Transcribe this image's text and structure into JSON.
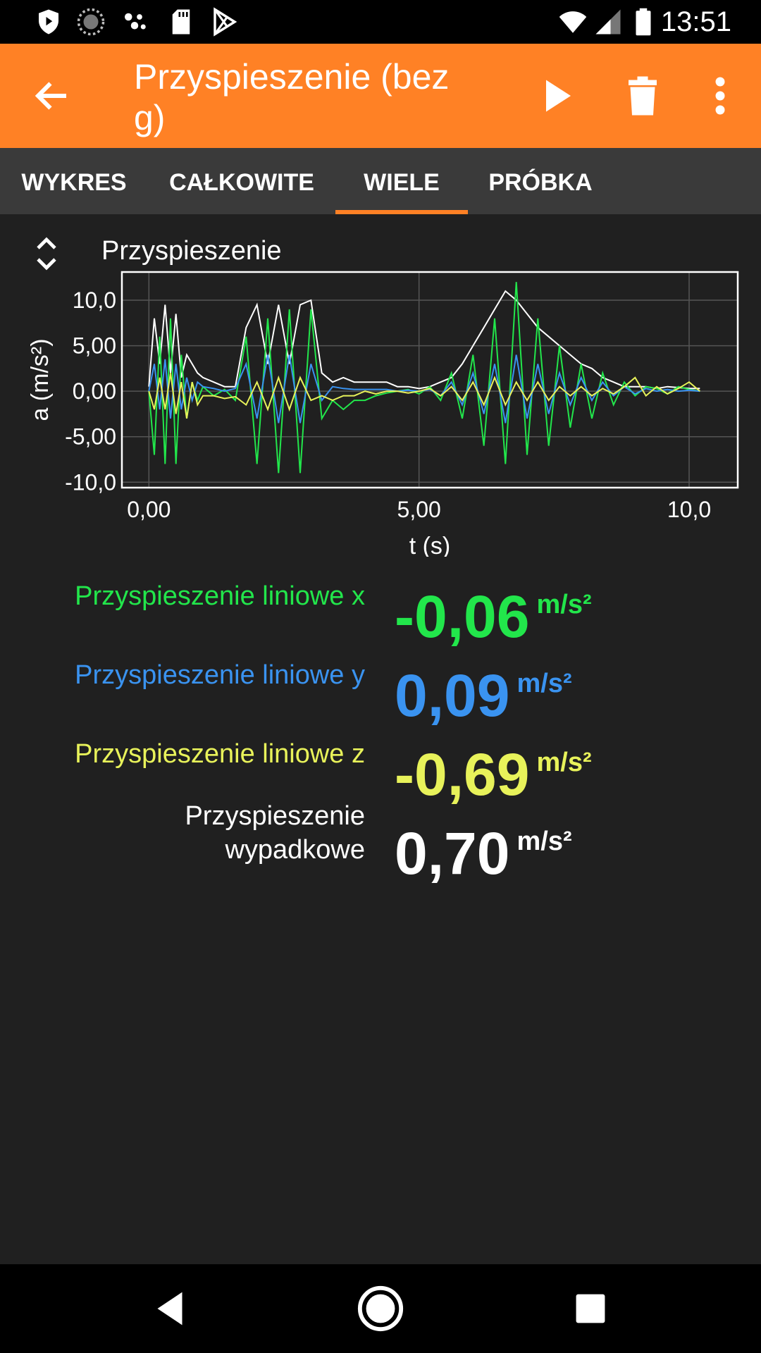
{
  "status_bar": {
    "time": "13:51",
    "left_icons": [
      "shield-icon",
      "sync-circle-icon",
      "dots-icon",
      "sd-card-icon",
      "play-store-icon"
    ],
    "right_icons": [
      "wifi-icon",
      "signal-icon",
      "battery-icon"
    ]
  },
  "app_bar": {
    "title": "Przyspieszenie (bez g)",
    "icons": [
      "back-arrow-icon",
      "play-icon",
      "trash-icon",
      "more-vert-icon"
    ],
    "accent_color": "#FF8125"
  },
  "tabs": [
    {
      "label": "WYKRES",
      "active": false
    },
    {
      "label": "CAŁKOWITE",
      "active": false
    },
    {
      "label": "WIELE",
      "active": true
    },
    {
      "label": "PRÓBKA",
      "active": false
    }
  ],
  "graph": {
    "title": "Przyspieszenie"
  },
  "chart_data": {
    "type": "line",
    "title": "Przyspieszenie",
    "xlabel": "t (s)",
    "ylabel": "a (m/s²)",
    "xlim": [
      -0.5,
      10.9
    ],
    "ylim": [
      -10.6,
      13.1
    ],
    "x_ticks": [
      {
        "value": 0,
        "label": "0,00"
      },
      {
        "value": 5,
        "label": "5,00"
      },
      {
        "value": 10,
        "label": "10,0"
      }
    ],
    "y_ticks": [
      {
        "value": 10,
        "label": "10,0"
      },
      {
        "value": 5,
        "label": "5,00"
      },
      {
        "value": 0,
        "label": "0,00"
      },
      {
        "value": -5,
        "label": "-5,00"
      },
      {
        "value": -10,
        "label": "-10,0"
      }
    ],
    "grid": true,
    "series": [
      {
        "color": "#FFFFFF",
        "x": [
          0,
          0.1,
          0.2,
          0.3,
          0.4,
          0.5,
          0.6,
          0.7,
          0.8,
          0.9,
          1.0,
          1.2,
          1.4,
          1.6,
          1.8,
          2.0,
          2.2,
          2.4,
          2.6,
          2.8,
          3.0,
          3.2,
          3.4,
          3.6,
          3.8,
          4.0,
          4.2,
          4.4,
          4.6,
          4.8,
          5.0,
          5.2,
          5.4,
          5.6,
          5.8,
          6.0,
          6.2,
          6.4,
          6.6,
          6.8,
          7.0,
          7.2,
          7.4,
          7.6,
          7.8,
          8.0,
          8.2,
          8.4,
          8.6,
          8.8,
          9.0,
          9.2,
          9.4,
          9.6,
          9.8,
          10.0,
          10.2
        ],
        "y": [
          0.5,
          8.0,
          3.0,
          9.5,
          2.0,
          8.5,
          1.5,
          4.0,
          3.0,
          2.0,
          1.5,
          1.0,
          0.5,
          0.5,
          7.0,
          9.5,
          3.0,
          9.5,
          3.0,
          9.5,
          10.0,
          2.0,
          1.0,
          1.5,
          1.0,
          1.0,
          1.0,
          1.0,
          0.5,
          0.5,
          0.3,
          0.5,
          1.0,
          1.5,
          3.0,
          5.0,
          7.0,
          9.0,
          11.0,
          10.0,
          8.5,
          7.0,
          6.0,
          5.0,
          4.0,
          3.0,
          2.5,
          1.5,
          1.0,
          0.5,
          0.5,
          0.5,
          0.3,
          0.5,
          0.4,
          0.3,
          0.3
        ]
      },
      {
        "color": "#22E64B",
        "x": [
          0,
          0.1,
          0.2,
          0.3,
          0.4,
          0.5,
          0.6,
          0.7,
          0.8,
          0.9,
          1.0,
          1.2,
          1.4,
          1.6,
          1.8,
          2.0,
          2.2,
          2.4,
          2.6,
          2.8,
          3.0,
          3.2,
          3.4,
          3.6,
          3.8,
          4.0,
          4.2,
          4.4,
          4.6,
          4.8,
          5.0,
          5.2,
          5.4,
          5.6,
          5.8,
          6.0,
          6.2,
          6.4,
          6.6,
          6.8,
          7.0,
          7.2,
          7.4,
          7.6,
          7.8,
          8.0,
          8.2,
          8.4,
          8.6,
          8.8,
          9.0,
          9.2,
          9.4,
          9.6,
          9.8,
          10.0,
          10.2
        ],
        "y": [
          0.0,
          -7.0,
          6.0,
          -8.0,
          8.0,
          -8.0,
          4.0,
          -3.0,
          1.0,
          -1.0,
          0.5,
          -0.5,
          0.2,
          -1.0,
          6.0,
          -8.0,
          8.0,
          -9.0,
          9.0,
          -9.0,
          9.0,
          -3.0,
          -1.0,
          -2.0,
          -1.0,
          -1.0,
          -0.5,
          -0.2,
          0.0,
          0.2,
          -0.3,
          0.5,
          -1.0,
          2.0,
          -3.0,
          4.0,
          -6.0,
          8.0,
          -8.0,
          12.0,
          -7.0,
          8.0,
          -6.0,
          5.0,
          -4.0,
          3.0,
          -3.0,
          2.0,
          -1.5,
          1.0,
          -0.5,
          0.5,
          0.3,
          -0.3,
          0.5,
          0.2,
          0.0
        ]
      },
      {
        "color": "#3A93F0",
        "x": [
          0,
          0.1,
          0.2,
          0.3,
          0.4,
          0.5,
          0.6,
          0.7,
          0.8,
          0.9,
          1.0,
          1.2,
          1.4,
          1.6,
          1.8,
          2.0,
          2.2,
          2.4,
          2.6,
          2.8,
          3.0,
          3.2,
          3.4,
          3.6,
          3.8,
          4.0,
          4.2,
          4.4,
          4.6,
          4.8,
          5.0,
          5.2,
          5.4,
          5.6,
          5.8,
          6.0,
          6.2,
          6.4,
          6.6,
          6.8,
          7.0,
          7.2,
          7.4,
          7.6,
          7.8,
          8.0,
          8.2,
          8.4,
          8.6,
          8.8,
          9.0,
          9.2,
          9.4,
          9.6,
          9.8,
          10.0,
          10.2
        ],
        "y": [
          0.0,
          3.0,
          -2.0,
          3.5,
          -3.0,
          3.0,
          -2.0,
          1.5,
          -1.0,
          1.0,
          0.5,
          0.3,
          0.0,
          0.3,
          3.0,
          -3.0,
          4.0,
          -3.5,
          4.0,
          -3.5,
          3.0,
          -1.0,
          0.5,
          0.3,
          0.2,
          0.2,
          0.2,
          0.2,
          0.0,
          0.1,
          0.0,
          0.2,
          -0.5,
          1.0,
          -1.5,
          2.0,
          -2.5,
          3.0,
          -3.5,
          4.0,
          -3.0,
          3.0,
          -2.5,
          2.0,
          -1.5,
          1.5,
          -1.0,
          1.0,
          -0.5,
          0.5,
          -0.3,
          0.3,
          0.0,
          0.2,
          0.0,
          0.1,
          0.0
        ]
      },
      {
        "color": "#E8F25A",
        "x": [
          0,
          0.1,
          0.2,
          0.3,
          0.4,
          0.5,
          0.6,
          0.7,
          0.8,
          0.9,
          1.0,
          1.2,
          1.4,
          1.6,
          1.8,
          2.0,
          2.2,
          2.4,
          2.6,
          2.8,
          3.0,
          3.2,
          3.4,
          3.6,
          3.8,
          4.0,
          4.2,
          4.4,
          4.6,
          4.8,
          5.0,
          5.2,
          5.4,
          5.6,
          5.8,
          6.0,
          6.2,
          6.4,
          6.6,
          6.8,
          7.0,
          7.2,
          7.4,
          7.6,
          7.8,
          8.0,
          8.2,
          8.4,
          8.6,
          8.8,
          9.0,
          9.2,
          9.4,
          9.6,
          9.8,
          10.0,
          10.2
        ],
        "y": [
          0.0,
          -2.0,
          1.5,
          -2.0,
          2.0,
          -2.5,
          1.0,
          -3.0,
          1.0,
          -1.5,
          -0.5,
          -0.5,
          -0.8,
          -0.6,
          -1.5,
          1.0,
          -2.0,
          1.5,
          -2.0,
          1.5,
          -1.0,
          -0.5,
          -1.0,
          -0.5,
          -0.5,
          0.0,
          -0.3,
          0.0,
          0.0,
          -0.2,
          0.0,
          0.3,
          -0.5,
          0.5,
          -1.0,
          1.0,
          -1.5,
          1.5,
          -1.5,
          1.0,
          -1.0,
          1.0,
          -1.0,
          0.5,
          -0.5,
          0.5,
          -0.5,
          0.3,
          -0.3,
          0.5,
          1.5,
          -0.5,
          0.5,
          -0.3,
          0.3,
          1.0,
          0.0
        ]
      }
    ]
  },
  "values": [
    {
      "label": "Przyspieszenie liniowe x",
      "value": "-0,06",
      "unit": "m/s²",
      "color": "#22E64B"
    },
    {
      "label": "Przyspieszenie liniowe y",
      "value": "0,09",
      "unit": "m/s²",
      "color": "#3A93F0"
    },
    {
      "label": "Przyspieszenie liniowe z",
      "value": "-0,69",
      "unit": "m/s²",
      "color": "#E8F25A"
    },
    {
      "label_line1": "Przyspieszenie",
      "label_line2": "wypadkowe",
      "value": "0,70",
      "unit": "m/s²",
      "color": "#FFFFFF"
    }
  ],
  "nav_bar": {
    "icons": [
      "back-triangle-icon",
      "home-circle-icon",
      "recents-square-icon"
    ]
  }
}
